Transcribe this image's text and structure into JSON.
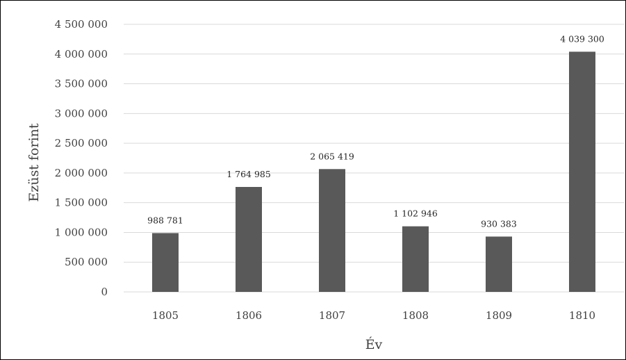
{
  "chart_data": {
    "type": "bar",
    "categories": [
      "1805",
      "1806",
      "1807",
      "1808",
      "1809",
      "1810"
    ],
    "values": [
      988781,
      1764985,
      2065419,
      1102946,
      930383,
      4039300
    ],
    "data_labels": [
      "988 781",
      "1 764 985",
      "2 065 419",
      "1 102 946",
      "930 383",
      "4 039 300"
    ],
    "xlabel": "Év",
    "ylabel": "Ezüst forint",
    "ylim": [
      0,
      4500000
    ],
    "yticks": [
      0,
      500000,
      1000000,
      1500000,
      2000000,
      2500000,
      3000000,
      3500000,
      4000000,
      4500000
    ],
    "ytick_labels": [
      "0",
      "500 000",
      "1 000 000",
      "1 500 000",
      "2 000 000",
      "2 500 000",
      "3 000 000",
      "3 500 000",
      "4 000 000",
      "4 500 000"
    ],
    "grid": true,
    "legend": "none",
    "bar_color": "#595959",
    "grid_color": "#d9d9d9"
  }
}
